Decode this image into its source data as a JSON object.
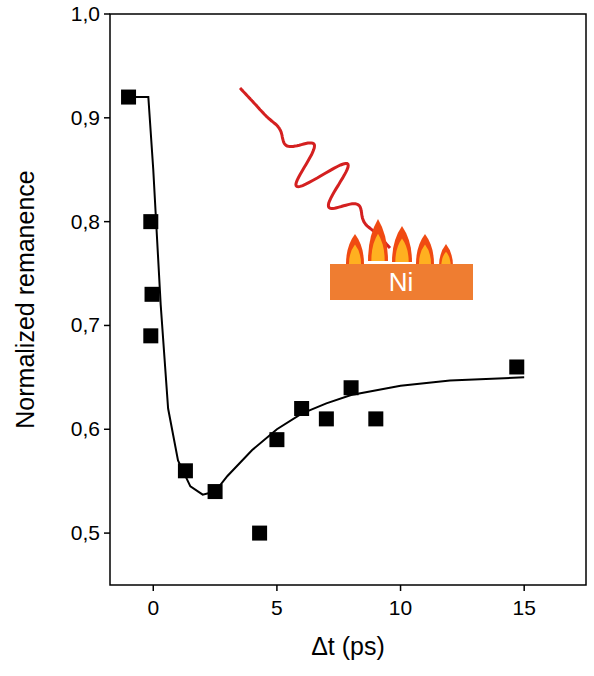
{
  "chart_data": {
    "type": "scatter",
    "x_label": "Δt (ps)",
    "y_label": "Normalized remanence",
    "annotations": [
      "Ni"
    ],
    "xlim": [
      -1.75,
      17.5
    ],
    "ylim": [
      0.45,
      1.0
    ],
    "xticks": [
      0,
      5,
      10,
      15
    ],
    "yticks": [
      {
        "value": 0.5,
        "label": "0,5"
      },
      {
        "value": 0.6,
        "label": "0,6"
      },
      {
        "value": 0.7,
        "label": "0,7"
      },
      {
        "value": 0.8,
        "label": "0,8"
      },
      {
        "value": 0.9,
        "label": "0,9"
      },
      {
        "value": 1.0,
        "label": "1,0"
      }
    ],
    "grid": false,
    "series": [
      {
        "type": "scatter",
        "marker": "square",
        "color": "#000000",
        "x": [
          -1,
          -0.1,
          -0.05,
          -0.1,
          1.3,
          2.5,
          4.3,
          5,
          6,
          7,
          8,
          9,
          14.7
        ],
        "values": [
          0.92,
          0.8,
          0.73,
          0.69,
          0.56,
          0.54,
          0.5,
          0.59,
          0.62,
          0.61,
          0.64,
          0.61,
          0.66
        ]
      },
      {
        "type": "line",
        "line_style": "solid",
        "color": "#000000",
        "x": [
          -1,
          -0.2,
          0,
          0.3,
          0.6,
          1,
          1.5,
          2,
          2.5,
          3,
          4,
          5,
          6,
          7,
          8,
          10,
          12,
          15
        ],
        "values": [
          0.92,
          0.92,
          0.85,
          0.72,
          0.62,
          0.57,
          0.545,
          0.537,
          0.54,
          0.555,
          0.58,
          0.6,
          0.615,
          0.625,
          0.633,
          0.642,
          0.647,
          0.65
        ]
      }
    ]
  }
}
